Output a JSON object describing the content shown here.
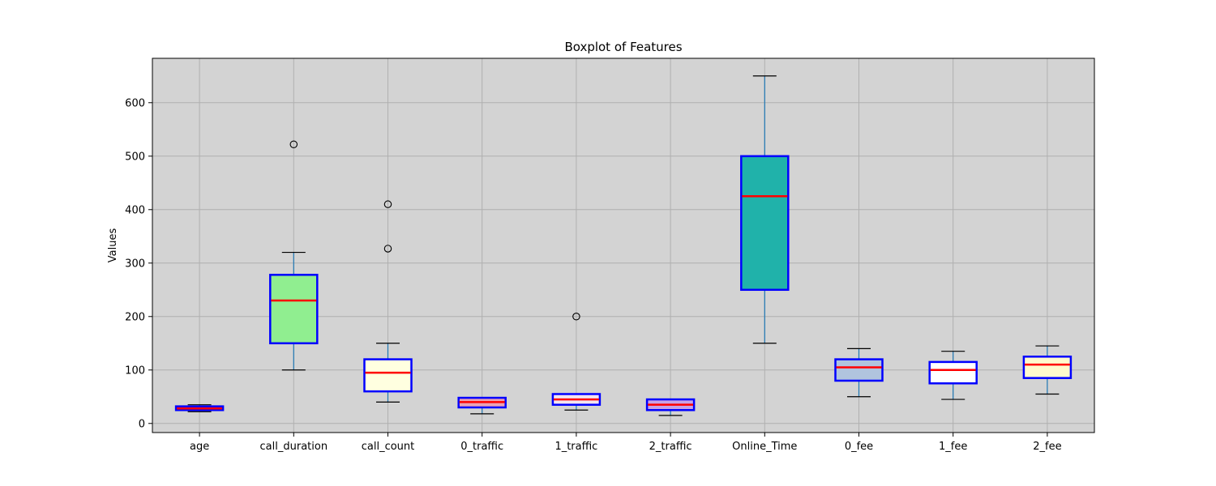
{
  "chart_data": {
    "type": "boxplot",
    "title": "Boxplot of Features",
    "xlabel": "",
    "ylabel": "Values",
    "ylim": [
      -17,
      683
    ],
    "yticks": [
      0,
      100,
      200,
      300,
      400,
      500,
      600
    ],
    "grid": true,
    "colors": {
      "plot_background": "#d3d3d3",
      "grid": "#b0b0b0",
      "box_edge": "#0000ff",
      "median": "#ff0000",
      "whisker": "#1f77b4",
      "cap": "#000000"
    },
    "categories": [
      "age",
      "call_duration",
      "call_count",
      "0_traffic",
      "1_traffic",
      "2_traffic",
      "Online_Time",
      "0_fee",
      "1_fee",
      "2_fee"
    ],
    "boxes": [
      {
        "label": "age",
        "whislo": 22,
        "q1": 25,
        "med": 28,
        "q3": 32,
        "whishi": 35,
        "fliers": [],
        "fill": "#e33df0"
      },
      {
        "label": "call_duration",
        "whislo": 100,
        "q1": 150,
        "med": 230,
        "q3": 278,
        "whishi": 320,
        "fliers": [
          522
        ],
        "fill": "#90ee90"
      },
      {
        "label": "call_count",
        "whislo": 40,
        "q1": 60,
        "med": 95,
        "q3": 120,
        "whishi": 150,
        "fliers": [
          410,
          327
        ],
        "fill": "#ffffe0"
      },
      {
        "label": "0_traffic",
        "whislo": 18,
        "q1": 30,
        "med": 40,
        "q3": 48,
        "whishi": 48,
        "fliers": [],
        "fill": "#e9a3b5"
      },
      {
        "label": "1_traffic",
        "whislo": 25,
        "q1": 35,
        "med": 45,
        "q3": 55,
        "whishi": 55,
        "fliers": [
          200
        ],
        "fill": "#f2e4f0"
      },
      {
        "label": "2_traffic",
        "whislo": 15,
        "q1": 25,
        "med": 35,
        "q3": 45,
        "whishi": 45,
        "fliers": [],
        "fill": "#c9a2e6"
      },
      {
        "label": "Online_Time",
        "whislo": 150,
        "q1": 250,
        "med": 425,
        "q3": 500,
        "whishi": 650,
        "fliers": [],
        "fill": "#20b2aa"
      },
      {
        "label": "0_fee",
        "whislo": 50,
        "q1": 80,
        "med": 105,
        "q3": 120,
        "whishi": 140,
        "fliers": [],
        "fill": "#b0c4de"
      },
      {
        "label": "1_fee",
        "whislo": 45,
        "q1": 75,
        "med": 100,
        "q3": 115,
        "whishi": 135,
        "fliers": [],
        "fill": "#ffffff"
      },
      {
        "label": "2_fee",
        "whislo": 55,
        "q1": 85,
        "med": 110,
        "q3": 125,
        "whishi": 145,
        "fliers": [],
        "fill": "#fffacd"
      }
    ]
  }
}
